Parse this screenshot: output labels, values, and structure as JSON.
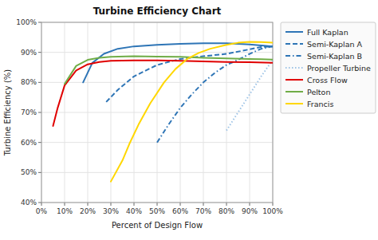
{
  "chart_data": {
    "type": "line",
    "title": "Turbine Efficiency Chart",
    "x_label": "Percent of Design Flow",
    "y_label": "Turbine Efficiency (%)",
    "xlim": [
      0,
      1.0
    ],
    "ylim": [
      0.4,
      1.0
    ],
    "xticks": [
      {
        "value": 0,
        "label": "0%"
      },
      {
        "value": 0.1,
        "label": "10%"
      },
      {
        "value": 0.2,
        "label": "20%"
      },
      {
        "value": 0.3,
        "label": "30%"
      },
      {
        "value": 0.4,
        "label": "40%"
      },
      {
        "value": 0.5,
        "label": "50%"
      },
      {
        "value": 0.6,
        "label": "60%"
      },
      {
        "value": 0.7,
        "label": "70%"
      },
      {
        "value": 0.8,
        "label": "80%"
      },
      {
        "value": 0.9,
        "label": "90%"
      },
      {
        "value": 1.0,
        "label": "100%"
      }
    ],
    "yticks": [
      {
        "value": 0.4,
        "label": "40%"
      },
      {
        "value": 0.5,
        "label": "50%"
      },
      {
        "value": 0.6,
        "label": "60%"
      },
      {
        "value": 0.7,
        "label": "70%"
      },
      {
        "value": 0.8,
        "label": "80%"
      },
      {
        "value": 0.9,
        "label": "90%"
      },
      {
        "value": 1.0,
        "label": "100%"
      }
    ],
    "grid": true,
    "legend": "right",
    "series": [
      {
        "name": "Full Kaplan",
        "color": "#2e75b6",
        "line_style": "solid",
        "x": [
          0.18,
          0.22,
          0.27,
          0.33,
          0.4,
          0.5,
          0.6,
          0.7,
          0.8,
          0.9,
          0.95,
          1.0
        ],
        "values": [
          0.8,
          0.865,
          0.895,
          0.912,
          0.92,
          0.925,
          0.928,
          0.93,
          0.93,
          0.926,
          0.923,
          0.92
        ]
      },
      {
        "name": "Semi-Kaplan A",
        "color": "#2e75b6",
        "line_style": "dashed",
        "x": [
          0.28,
          0.33,
          0.4,
          0.5,
          0.6,
          0.7,
          0.8,
          0.9,
          0.95,
          1.0
        ],
        "values": [
          0.735,
          0.775,
          0.82,
          0.858,
          0.878,
          0.887,
          0.895,
          0.91,
          0.918,
          0.92
        ]
      },
      {
        "name": "Semi-Kaplan B",
        "color": "#2e75b6",
        "line_style": "dashdot",
        "x": [
          0.5,
          0.55,
          0.6,
          0.65,
          0.7,
          0.75,
          0.8,
          0.85,
          0.9,
          0.95,
          1.0
        ],
        "values": [
          0.6,
          0.66,
          0.715,
          0.76,
          0.8,
          0.832,
          0.858,
          0.875,
          0.895,
          0.912,
          0.92
        ]
      },
      {
        "name": "Propeller Turbine",
        "color": "#9dc3e6",
        "line_style": "dotted",
        "x": [
          0.8,
          0.85,
          0.9,
          0.95,
          1.0
        ],
        "values": [
          0.64,
          0.7,
          0.76,
          0.82,
          0.875
        ]
      },
      {
        "name": "Cross Flow",
        "color": "#e00000",
        "line_style": "solid",
        "x": [
          0.05,
          0.07,
          0.1,
          0.15,
          0.2,
          0.25,
          0.3,
          0.4,
          0.5,
          0.6,
          0.7,
          0.8,
          0.9,
          1.0
        ],
        "values": [
          0.655,
          0.715,
          0.79,
          0.84,
          0.86,
          0.868,
          0.872,
          0.873,
          0.873,
          0.872,
          0.87,
          0.868,
          0.867,
          0.865
        ]
      },
      {
        "name": "Pelton",
        "color": "#70ad47",
        "line_style": "solid",
        "x": [
          0.1,
          0.15,
          0.2,
          0.25,
          0.3,
          0.4,
          0.5,
          0.6,
          0.7,
          0.8,
          0.9,
          0.95,
          1.0
        ],
        "values": [
          0.795,
          0.855,
          0.875,
          0.882,
          0.885,
          0.887,
          0.886,
          0.885,
          0.882,
          0.88,
          0.878,
          0.877,
          0.876
        ]
      },
      {
        "name": "Francis",
        "color": "#ffd700",
        "line_style": "solid",
        "x": [
          0.3,
          0.35,
          0.38,
          0.42,
          0.47,
          0.53,
          0.58,
          0.63,
          0.68,
          0.73,
          0.8,
          0.85,
          0.9,
          0.95,
          1.0
        ],
        "values": [
          0.47,
          0.54,
          0.595,
          0.66,
          0.73,
          0.8,
          0.845,
          0.878,
          0.898,
          0.912,
          0.925,
          0.932,
          0.935,
          0.934,
          0.932
        ]
      }
    ]
  }
}
